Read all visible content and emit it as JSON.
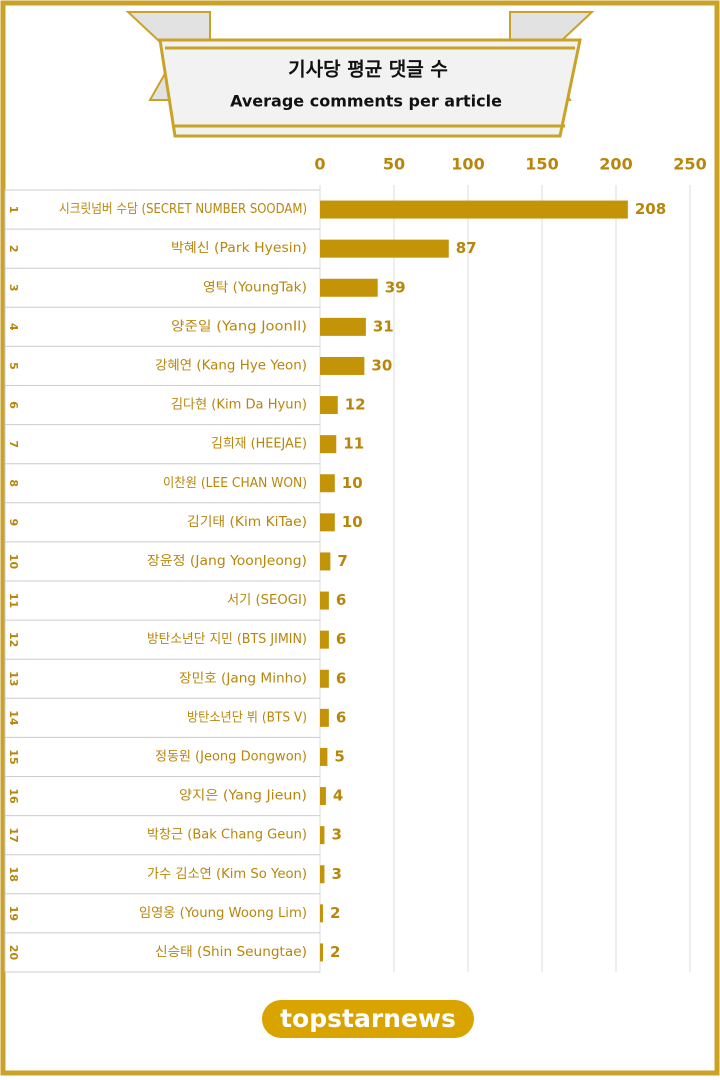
{
  "chart_data": {
    "type": "barh",
    "title": "기사당 평균 댓글 수",
    "subtitle": "Average comments per article",
    "ranks": [
      1,
      2,
      3,
      4,
      5,
      6,
      7,
      8,
      9,
      10,
      11,
      12,
      13,
      14,
      15,
      16,
      17,
      18,
      19,
      20
    ],
    "categories": [
      "시크릿넘버 수담 (SECRET NUMBER SOODAM)",
      "박혜신 (Park Hyesin)",
      "영탁 (YoungTak)",
      "양준일 (Yang JoonIl)",
      "강혜연 (Kang Hye Yeon)",
      "김다현 (Kim Da Hyun)",
      "김희재 (HEEJAE)",
      "이찬원 (LEE CHAN WON)",
      "김기태 (Kim KiTae)",
      "장윤정 (Jang YoonJeong)",
      "서기 (SEOGI)",
      "방탄소년단 지민 (BTS JIMIN)",
      "장민호 (Jang Minho)",
      "방탄소년단 뷔 (BTS V)",
      "정동원 (Jeong Dongwon)",
      "양지은 (Yang Jieun)",
      "박창근 (Bak Chang Geun)",
      "가수 김소연 (Kim So Yeon)",
      "임영웅 (Young Woong Lim)",
      "신승태 (Shin Seungtae)"
    ],
    "values": [
      208,
      87,
      39,
      31,
      30,
      12,
      11,
      10,
      10,
      7,
      6,
      6,
      6,
      6,
      5,
      4,
      3,
      3,
      2,
      2
    ],
    "color": "#c39308",
    "xlim": [
      0,
      250
    ],
    "xticks": [
      0,
      50,
      100,
      150,
      200,
      250
    ],
    "grid": true
  },
  "logo": "topstarnews"
}
